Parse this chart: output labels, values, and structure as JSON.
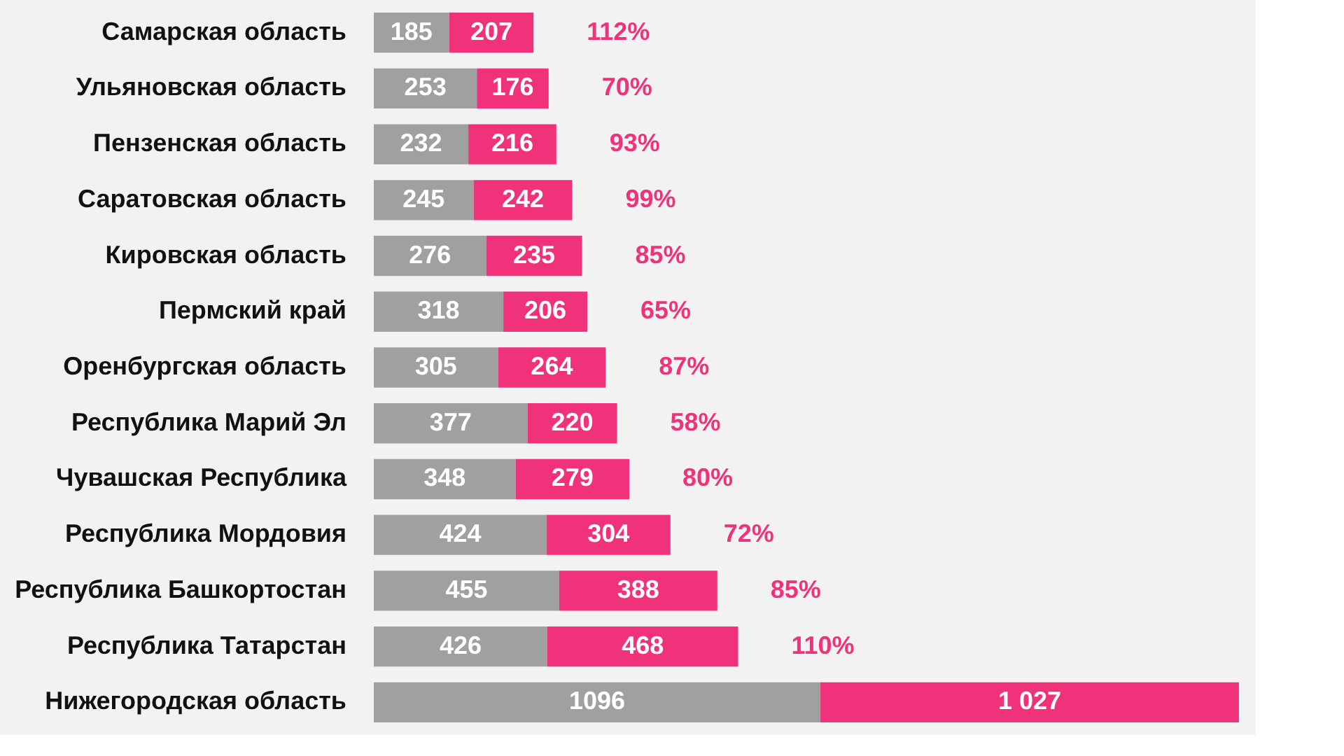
{
  "chart_data": {
    "type": "bar",
    "orientation": "horizontal",
    "stacked": true,
    "categories": [
      "Самарская область",
      "Ульяновская область",
      "Пензенская область",
      "Саратовская область",
      "Кировская область",
      "Пермский край",
      "Оренбургская область",
      "Республика Марий Эл",
      "Чувашская Республика",
      "Республика Мордовия",
      "Республика Башкортостан",
      "Республика Татарстан",
      "Нижегородская область"
    ],
    "series": [
      {
        "color": "#a0a0a0",
        "values": [
          185,
          253,
          232,
          245,
          276,
          318,
          305,
          377,
          348,
          424,
          455,
          426,
          1096
        ],
        "value_labels": [
          "185",
          "253",
          "232",
          "245",
          "276",
          "318",
          "305",
          "377",
          "348",
          "424",
          "455",
          "426",
          "1096"
        ]
      },
      {
        "color": "#f0327a",
        "values": [
          207,
          176,
          216,
          242,
          235,
          206,
          264,
          220,
          279,
          304,
          388,
          468,
          1027
        ],
        "value_labels": [
          "207",
          "176",
          "216",
          "242",
          "235",
          "206",
          "264",
          "220",
          "279",
          "304",
          "388",
          "468",
          "1 027"
        ]
      }
    ],
    "xlim": [
      0,
      2130
    ],
    "tick_labels": "y",
    "grid": false,
    "annotations": [
      {
        "text": "112%",
        "x": 392,
        "y": "Самарская область"
      },
      {
        "text": "70%",
        "x": 429,
        "y": "Ульяновская область"
      },
      {
        "text": "93%",
        "x": 448,
        "y": "Пензенская область"
      },
      {
        "text": "99%",
        "x": 487,
        "y": "Саратовская область"
      },
      {
        "text": "85%",
        "x": 511,
        "y": "Кировская область"
      },
      {
        "text": "65%",
        "x": 524,
        "y": "Пермский край"
      },
      {
        "text": "87%",
        "x": 569,
        "y": "Оренбургская область"
      },
      {
        "text": "58%",
        "x": 597,
        "y": "Республика Марий Эл"
      },
      {
        "text": "80%",
        "x": 627,
        "y": "Чувашская Республика"
      },
      {
        "text": "72%",
        "x": 728,
        "y": "Республика Мордовия"
      },
      {
        "text": "85%",
        "x": 843,
        "y": "Республика Башкортостан"
      },
      {
        "text": "110%",
        "x": 894,
        "y": "Республика Татарстан"
      }
    ]
  }
}
